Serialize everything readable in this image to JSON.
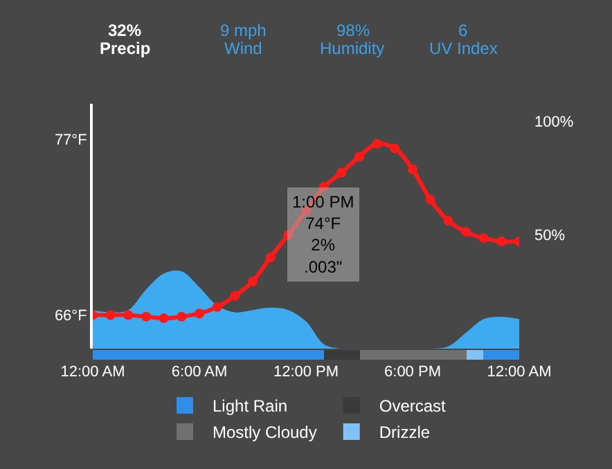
{
  "chart_data": [
    {
      "type": "line",
      "x": [
        0,
        1,
        2,
        3,
        4,
        5,
        6,
        7,
        8,
        9,
        10,
        11,
        12,
        13,
        14,
        15,
        16,
        17,
        18,
        19,
        20,
        21,
        22,
        23,
        24
      ],
      "series": [
        {
          "type": "area",
          "axis": "y2",
          "color": "#3eaaf0",
          "values": [
            17,
            16,
            17,
            26,
            33,
            34,
            27,
            19,
            16,
            17,
            18,
            17,
            12,
            2,
            0,
            0,
            0,
            0,
            0,
            0,
            1,
            7,
            13,
            14,
            13
          ]
        },
        {
          "color": "#ff1a1a",
          "marker": "circle",
          "values": [
            66.0,
            66.0,
            66.0,
            65.9,
            65.8,
            65.9,
            66.1,
            66.5,
            67.2,
            68.1,
            69.6,
            71.0,
            72.5,
            74.0,
            74.9,
            75.9,
            76.7,
            76.4,
            75.1,
            73.2,
            71.9,
            71.2,
            70.8,
            70.6,
            70.6
          ]
        }
      ],
      "xlim": [
        0,
        24
      ],
      "ylim": [
        63.9,
        79.2
      ],
      "yticks": [
        {
          "value": 66,
          "label": "66°F"
        },
        {
          "value": 77,
          "label": "77°F"
        }
      ],
      "y2lim": [
        0,
        107.6
      ],
      "y2ticks": [
        {
          "value": 50,
          "label": "50%"
        },
        {
          "value": 100,
          "label": "100%"
        }
      ],
      "tick_labels": "y",
      "annotations": [
        "32%",
        "Precip",
        "9 mph",
        "Wind",
        "98%",
        "Humidity",
        "6",
        "UV Index",
        {
          "text": "1:00 PM\n74°F\n2%\n.003\"",
          "x": 13,
          "y": 74
        }
      ],
      "grid": false,
      "line_style": "solid"
    },
    {
      "type": "bar",
      "orientation": "horizontal",
      "stacked": true,
      "categories": [
        null
      ],
      "series": [
        {
          "name": "Light Rain",
          "color": "#2f8fe8",
          "values": [
            13
          ]
        },
        {
          "name": "Overcast",
          "color": "#3a3a3a",
          "values": [
            2
          ]
        },
        {
          "name": "Mostly Cloudy",
          "color": "#707070",
          "values": [
            6
          ]
        },
        {
          "name": "Drizzle",
          "color": "#80c2f5",
          "values": [
            1
          ]
        },
        {
          "color": "#2f8fe8",
          "values": [
            2
          ]
        }
      ],
      "xlim": [
        0,
        24
      ],
      "xticks": [
        {
          "value": 0,
          "label": "12:00 AM"
        },
        {
          "value": 6,
          "label": "6:00 AM"
        },
        {
          "value": 12,
          "label": "12:00 PM"
        },
        {
          "value": 18,
          "label": "6:00 PM"
        },
        {
          "value": 24,
          "label": "12:00 AM"
        }
      ],
      "tick_labels": "x",
      "grid": false,
      "legend": "bottom"
    }
  ]
}
